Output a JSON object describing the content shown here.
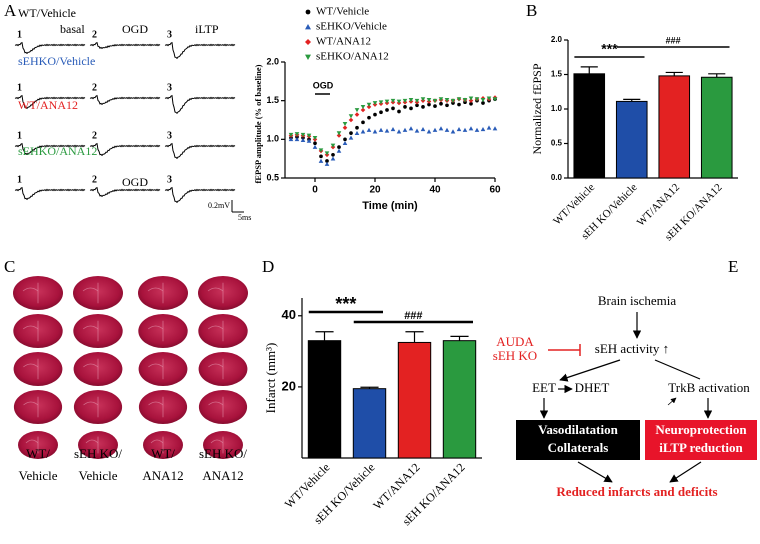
{
  "panels": [
    "A",
    "B",
    "C",
    "D",
    "E"
  ],
  "traces": {
    "groups": [
      {
        "name": "WT/Vehicle",
        "color": "#000000"
      },
      {
        "name": "sEHKO/Vehicle",
        "color": "#2a5cb8"
      },
      {
        "name": "WT/ANA12",
        "color": "#e32222"
      },
      {
        "name": "sEHKO/ANA12",
        "color": "#2a9a3f"
      }
    ],
    "numbers": [
      "1",
      "2",
      "3"
    ],
    "phases": [
      "basal",
      "OGD",
      "iLTP"
    ],
    "ogd_label": "OGD",
    "scale_v": "0.2mV",
    "scale_t": "5ms"
  },
  "chart_data": [
    {
      "type": "line",
      "xlabel": "Time (min)",
      "ylabel": "fEPSP amplitude (% of baseline)",
      "annotation": "OGD",
      "x": [
        -8,
        -6,
        -4,
        -2,
        0,
        2,
        4,
        6,
        8,
        10,
        12,
        14,
        16,
        18,
        20,
        22,
        24,
        26,
        28,
        30,
        32,
        34,
        36,
        38,
        40,
        42,
        44,
        46,
        48,
        50,
        52,
        54,
        56,
        58,
        60
      ],
      "xlim": [
        -10,
        60
      ],
      "xticks": [
        0,
        20,
        40,
        60
      ],
      "ylim": [
        0.5,
        2.0
      ],
      "yticks": [
        0.5,
        {
          "value": 1.0,
          "label": "1.0"
        },
        1.5,
        {
          "value": 2.0,
          "label": "2.0"
        }
      ],
      "series": [
        {
          "name": "WT/Vehicle",
          "color": "#000000",
          "marker": "circle",
          "values": [
            1.02,
            1.03,
            1.02,
            1.0,
            0.95,
            0.78,
            0.72,
            0.8,
            0.9,
            1.0,
            1.08,
            1.15,
            1.22,
            1.28,
            1.32,
            1.35,
            1.38,
            1.4,
            1.36,
            1.42,
            1.4,
            1.44,
            1.42,
            1.45,
            1.43,
            1.46,
            1.44,
            1.47,
            1.45,
            1.48,
            1.46,
            1.5,
            1.47,
            1.5,
            1.52
          ]
        },
        {
          "name": "sEHKO/Vehicle",
          "color": "#2a5cb8",
          "marker": "triangle",
          "values": [
            1.0,
            1.0,
            0.99,
            0.98,
            0.9,
            0.72,
            0.68,
            0.75,
            0.85,
            0.95,
            1.02,
            1.08,
            1.1,
            1.12,
            1.1,
            1.12,
            1.11,
            1.13,
            1.1,
            1.12,
            1.14,
            1.11,
            1.13,
            1.1,
            1.12,
            1.14,
            1.12,
            1.1,
            1.13,
            1.12,
            1.14,
            1.12,
            1.13,
            1.15,
            1.14
          ]
        },
        {
          "name": "WT/ANA12",
          "color": "#e32222",
          "marker": "diamond",
          "values": [
            1.05,
            1.06,
            1.05,
            1.04,
            1.0,
            0.85,
            0.8,
            0.9,
            1.05,
            1.15,
            1.25,
            1.32,
            1.38,
            1.42,
            1.45,
            1.46,
            1.47,
            1.48,
            1.47,
            1.48,
            1.49,
            1.48,
            1.5,
            1.49,
            1.5,
            1.51,
            1.5,
            1.5,
            1.52,
            1.51,
            1.5,
            1.52,
            1.53,
            1.52,
            1.54
          ]
        },
        {
          "name": "sEHKO/ANA12",
          "color": "#2a9a3f",
          "marker": "triangle-down",
          "values": [
            1.06,
            1.07,
            1.06,
            1.05,
            1.02,
            0.86,
            0.82,
            0.92,
            1.08,
            1.2,
            1.3,
            1.38,
            1.42,
            1.45,
            1.47,
            1.48,
            1.49,
            1.5,
            1.49,
            1.5,
            1.51,
            1.5,
            1.52,
            1.51,
            1.5,
            1.52,
            1.51,
            1.5,
            1.52,
            1.51,
            1.53,
            1.52,
            1.51,
            1.53,
            1.52
          ]
        }
      ],
      "legend": "upper left"
    },
    {
      "type": "bar",
      "ylabel": "Normalized fEPSP",
      "categories": [
        "WT/Vehicle",
        "sEH KO/Vehicle",
        "WT/ANA12",
        "sEH KO/ANA12"
      ],
      "values": [
        1.51,
        1.11,
        1.48,
        1.46
      ],
      "errors": [
        0.1,
        0.03,
        0.05,
        0.05
      ],
      "colors": [
        "#000000",
        "#1f4ea8",
        "#e32222",
        "#2a9a3f"
      ],
      "ylim": [
        0,
        2.0
      ],
      "yticks": [
        {
          "value": 0,
          "label": "0.0"
        },
        0.5,
        {
          "value": 1.0,
          "label": "1.0"
        },
        1.5,
        {
          "value": 2.0,
          "label": "2.0"
        }
      ],
      "annotations": [
        "***",
        "###"
      ]
    },
    {
      "type": "bar",
      "ylabel": "Infarct (mm³)",
      "categories": [
        "WT/Vehicle",
        "sEH KO/Vehicle",
        "WT/ANA12",
        "sEH KO/ANA12"
      ],
      "values": [
        33,
        19.5,
        32.5,
        33
      ],
      "errors": [
        2.5,
        0.4,
        3,
        1.2
      ],
      "colors": [
        "#000000",
        "#1f4ea8",
        "#e32222",
        "#2a9a3f"
      ],
      "ylim": [
        0,
        45
      ],
      "yticks": [
        20,
        40
      ],
      "annotations": [
        "***",
        "###"
      ]
    }
  ],
  "brains": {
    "labels": [
      [
        "WT/",
        "Vehicle"
      ],
      [
        "sEH KO/",
        "Vehicle"
      ],
      [
        "WT/",
        "ANA12"
      ],
      [
        "sEH KO/",
        "ANA12"
      ]
    ]
  },
  "diagram": {
    "ischemia": "Brain ischemia",
    "inhibitors": [
      "AUDA",
      "sEH KO"
    ],
    "seh": "sEH activity ↑",
    "eet": "EET",
    "dhet": "DHET",
    "trkb": "TrkB activation",
    "box1": [
      "Vasodilatation",
      "Collaterals"
    ],
    "box2": [
      "Neuroprotection",
      "iLTP reduction"
    ],
    "outcome": "Reduced infarcts and deficits"
  }
}
